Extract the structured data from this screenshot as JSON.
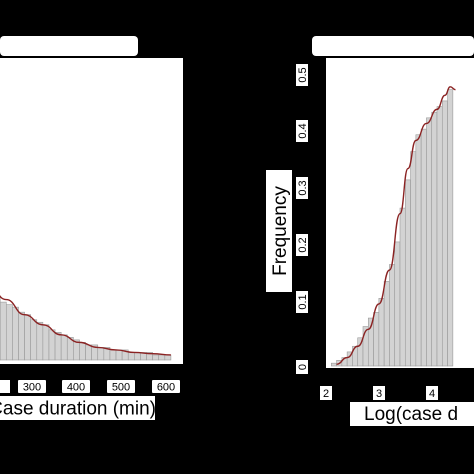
{
  "chart_data": [
    {
      "type": "bar",
      "panel": "left",
      "xlabel": "Case duration (min)",
      "ylabel": "",
      "title": "",
      "x_ticks": [
        "300",
        "400",
        "500",
        "600"
      ],
      "xlim": [
        0,
        620
      ],
      "ylim": [
        0,
        0.012
      ],
      "bins": [
        {
          "x": 0,
          "v": 0.0026
        },
        {
          "x": 20,
          "v": 0.0025
        },
        {
          "x": 40,
          "v": 0.0023
        },
        {
          "x": 60,
          "v": 0.0022
        },
        {
          "x": 80,
          "v": 0.0021
        },
        {
          "x": 100,
          "v": 0.0019
        },
        {
          "x": 120,
          "v": 0.0018
        },
        {
          "x": 140,
          "v": 0.0016
        },
        {
          "x": 160,
          "v": 0.0015
        },
        {
          "x": 180,
          "v": 0.0014
        },
        {
          "x": 200,
          "v": 0.0012
        },
        {
          "x": 220,
          "v": 0.0011
        },
        {
          "x": 240,
          "v": 0.001
        },
        {
          "x": 260,
          "v": 0.0009
        },
        {
          "x": 280,
          "v": 0.0008
        },
        {
          "x": 300,
          "v": 0.0007
        },
        {
          "x": 320,
          "v": 0.0006
        },
        {
          "x": 340,
          "v": 0.0006
        },
        {
          "x": 360,
          "v": 0.0005
        },
        {
          "x": 380,
          "v": 0.0005
        },
        {
          "x": 400,
          "v": 0.0004
        },
        {
          "x": 420,
          "v": 0.0004
        },
        {
          "x": 440,
          "v": 0.0004
        },
        {
          "x": 460,
          "v": 0.0003
        },
        {
          "x": 480,
          "v": 0.0003
        },
        {
          "x": 500,
          "v": 0.0003
        },
        {
          "x": 520,
          "v": 0.0003
        },
        {
          "x": 540,
          "v": 0.0002
        },
        {
          "x": 560,
          "v": 0.0002
        },
        {
          "x": 580,
          "v": 0.0002
        }
      ],
      "bin_width": 20,
      "density_curve": [
        [
          0,
          0.003
        ],
        [
          60,
          0.0024
        ],
        [
          120,
          0.0018
        ],
        [
          180,
          0.0014
        ],
        [
          240,
          0.001
        ],
        [
          300,
          0.0007
        ],
        [
          360,
          0.0005
        ],
        [
          420,
          0.0004
        ],
        [
          480,
          0.0003
        ],
        [
          540,
          0.00025
        ],
        [
          600,
          0.0002
        ]
      ],
      "colors": {
        "bar_fill": "#d3d3d3",
        "bar_stroke": "#9a9a9a",
        "curve": "#8b2323"
      }
    },
    {
      "type": "bar",
      "panel": "right",
      "xlabel": "Log(case d",
      "ylabel": "Frequency",
      "title": "",
      "x_ticks": [
        "2",
        "3",
        "4"
      ],
      "y_ticks": [
        "0",
        "0.1",
        "0.2",
        "0.3",
        "0.4",
        "0.5"
      ],
      "xlim": [
        2,
        4.8
      ],
      "ylim": [
        0,
        0.5
      ],
      "bins": [
        {
          "x": 2.1,
          "v": 0.005
        },
        {
          "x": 2.2,
          "v": 0.01
        },
        {
          "x": 2.3,
          "v": 0.015
        },
        {
          "x": 2.4,
          "v": 0.025
        },
        {
          "x": 2.5,
          "v": 0.035
        },
        {
          "x": 2.6,
          "v": 0.05
        },
        {
          "x": 2.7,
          "v": 0.07
        },
        {
          "x": 2.8,
          "v": 0.085
        },
        {
          "x": 2.9,
          "v": 0.095
        },
        {
          "x": 3.0,
          "v": 0.12
        },
        {
          "x": 3.1,
          "v": 0.15
        },
        {
          "x": 3.2,
          "v": 0.18
        },
        {
          "x": 3.3,
          "v": 0.22
        },
        {
          "x": 3.4,
          "v": 0.28
        },
        {
          "x": 3.5,
          "v": 0.33
        },
        {
          "x": 3.6,
          "v": 0.38
        },
        {
          "x": 3.7,
          "v": 0.41
        },
        {
          "x": 3.8,
          "v": 0.42
        },
        {
          "x": 3.9,
          "v": 0.44
        },
        {
          "x": 4.0,
          "v": 0.45
        },
        {
          "x": 4.1,
          "v": 0.46
        },
        {
          "x": 4.2,
          "v": 0.47
        },
        {
          "x": 4.3,
          "v": 0.49
        }
      ],
      "bin_width": 0.1,
      "density_curve": [
        [
          2.2,
          0.003
        ],
        [
          2.4,
          0.015
        ],
        [
          2.6,
          0.035
        ],
        [
          2.8,
          0.065
        ],
        [
          3.0,
          0.11
        ],
        [
          3.2,
          0.17
        ],
        [
          3.4,
          0.27
        ],
        [
          3.55,
          0.35
        ],
        [
          3.7,
          0.4
        ],
        [
          3.9,
          0.43
        ],
        [
          4.1,
          0.455
        ],
        [
          4.25,
          0.48
        ],
        [
          4.35,
          0.495
        ],
        [
          4.45,
          0.49
        ]
      ],
      "colors": {
        "bar_fill": "#d3d3d3",
        "bar_stroke": "#9a9a9a",
        "curve": "#8b2323"
      }
    }
  ]
}
